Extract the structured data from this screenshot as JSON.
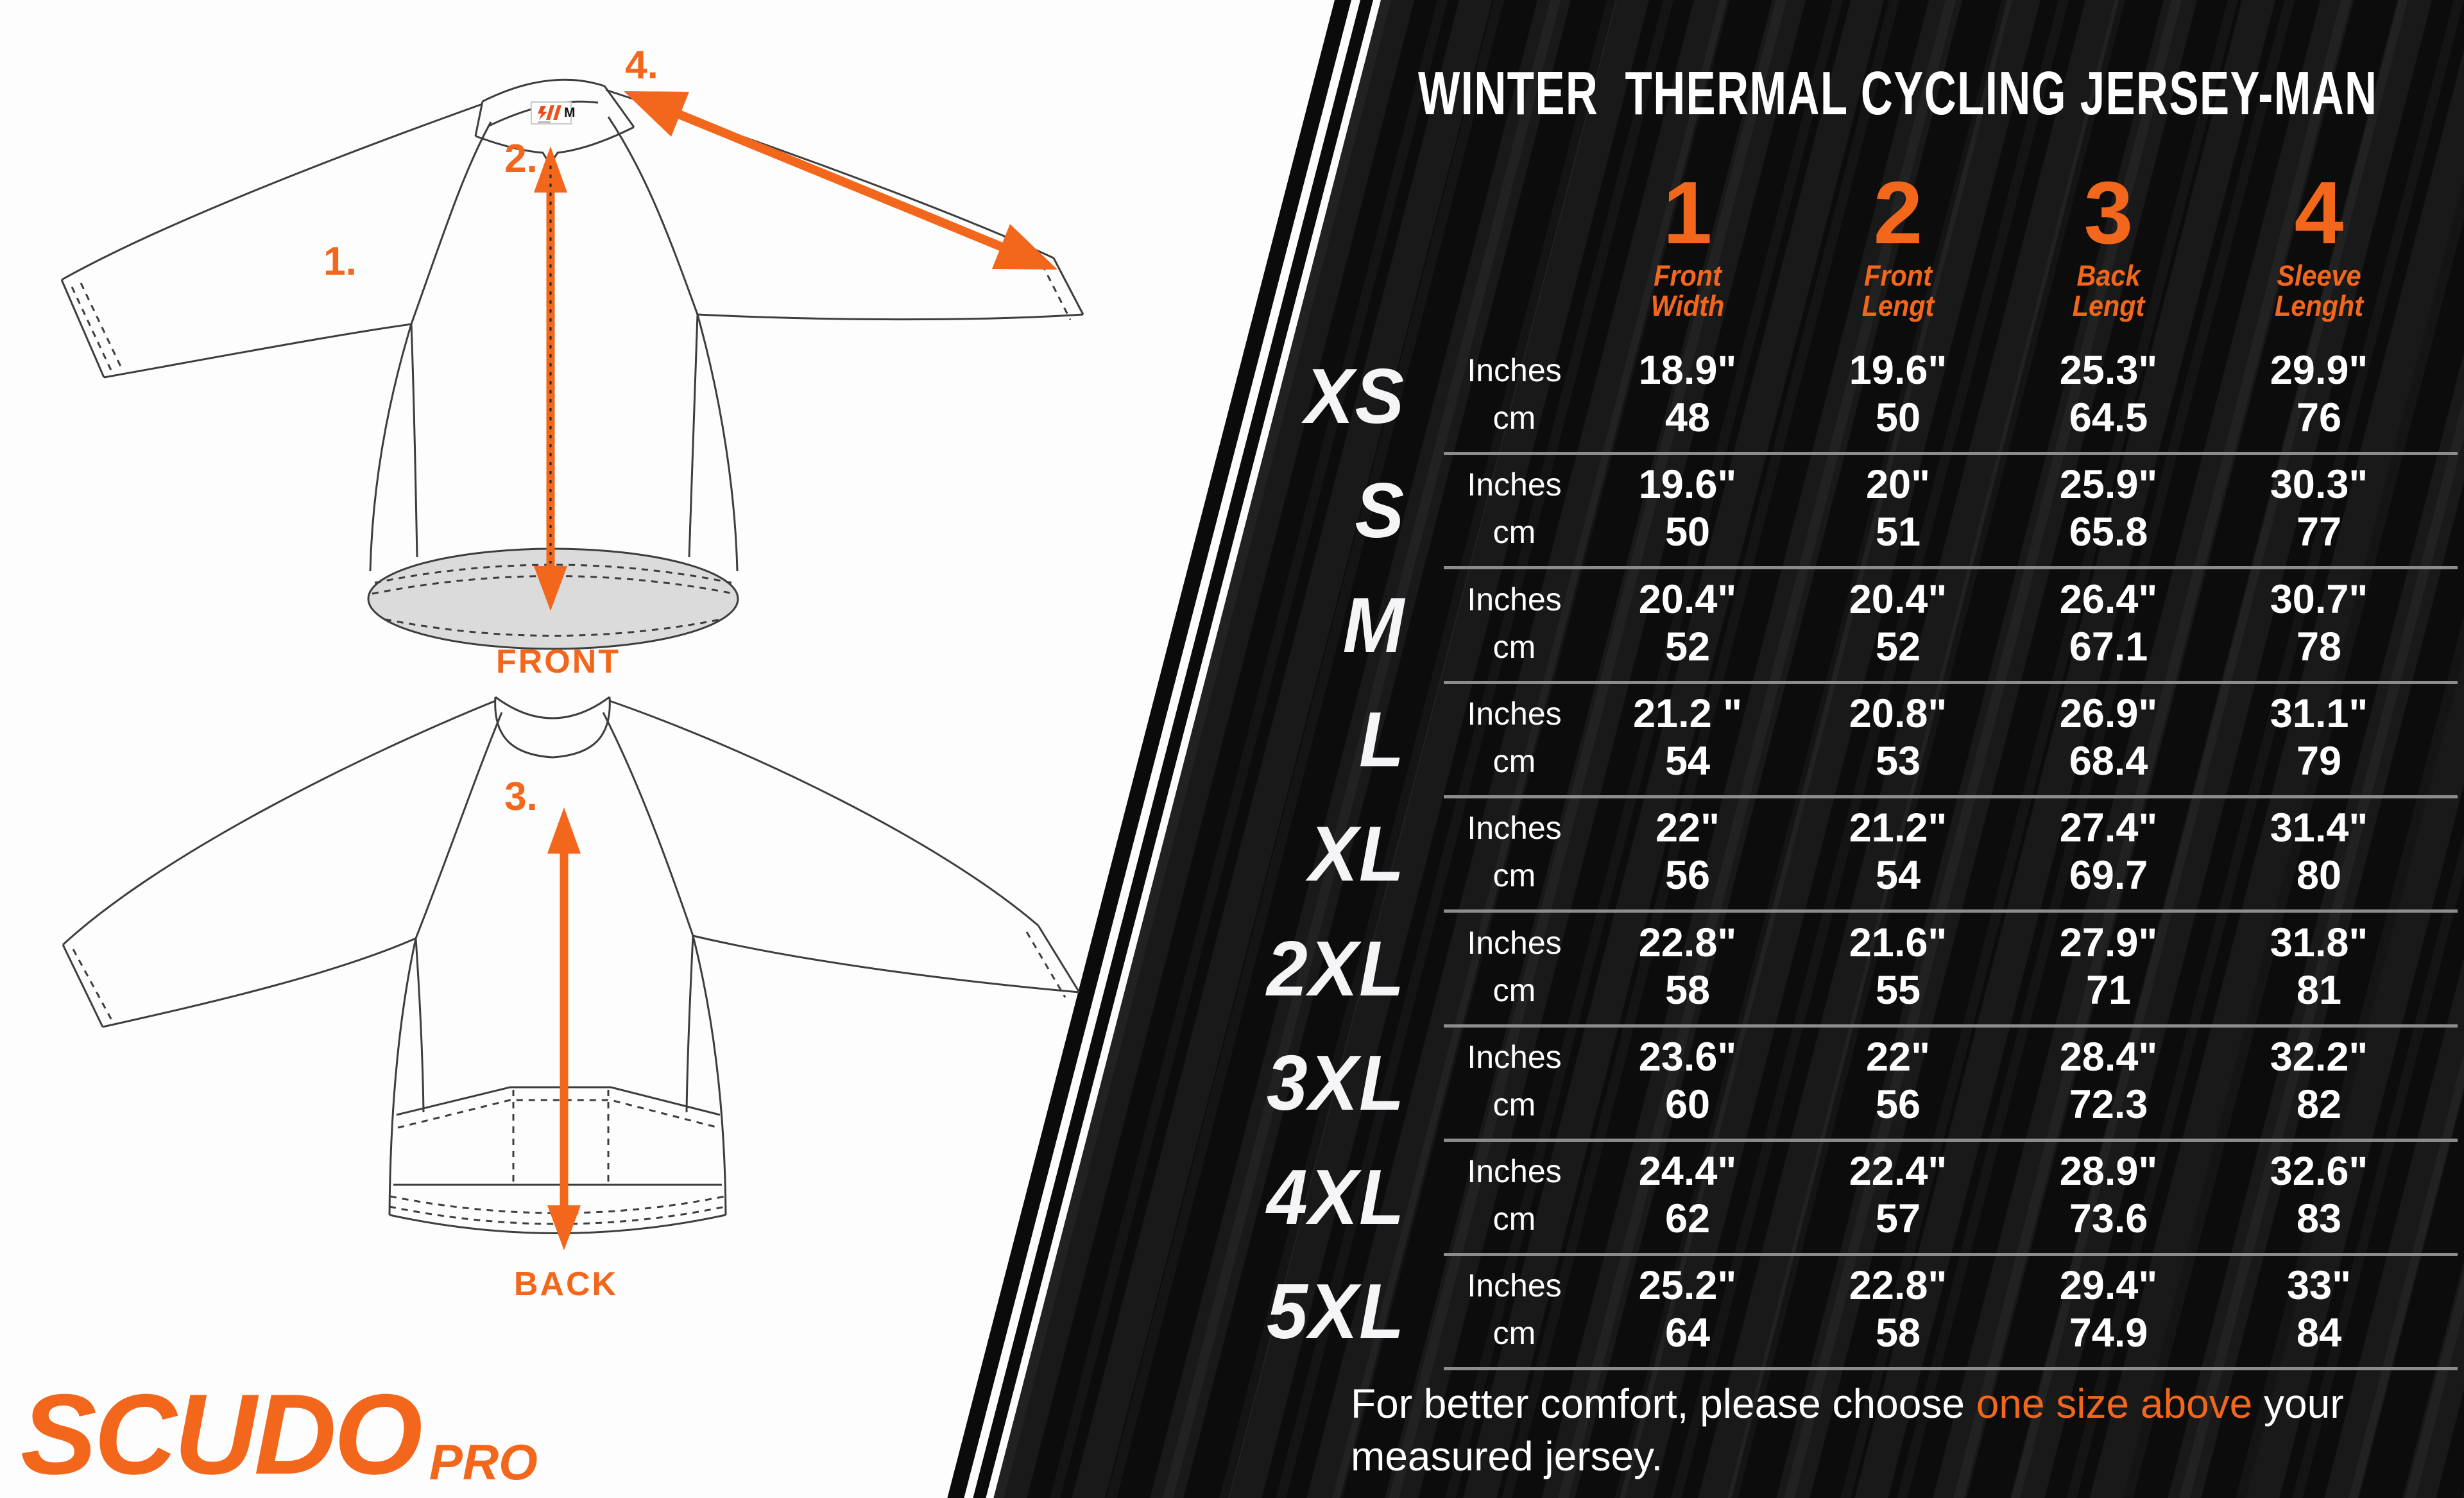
{
  "brand": {
    "logo_main": "SCUDO",
    "logo_sub": "PRO"
  },
  "diagram": {
    "front_label": "FRONT",
    "back_label": "BACK",
    "collar_tag_size": "M",
    "markers": {
      "front_width": "1.",
      "front_length": "2.",
      "back_length": "3.",
      "sleeve_length": "4."
    }
  },
  "table": {
    "title": "WINTER  THERMAL CYCLING JERSEY-MAN",
    "columns": [
      {
        "number": "1",
        "label1": "Front",
        "label2": "Width"
      },
      {
        "number": "2",
        "label1": "Front",
        "label2": "Lengt"
      },
      {
        "number": "3",
        "label1": "Back",
        "label2": "Lengt"
      },
      {
        "number": "4",
        "label1": "Sleeve",
        "label2": "Lenght"
      }
    ],
    "unit_labels": [
      "Inches",
      "cm"
    ],
    "rows": [
      {
        "size": "XS",
        "inches": [
          "18.9\"",
          "19.6\"",
          "25.3\"",
          "29.9\""
        ],
        "cm": [
          "48",
          "50",
          "64.5",
          "76"
        ]
      },
      {
        "size": "S",
        "inches": [
          "19.6\"",
          "20\"",
          "25.9\"",
          "30.3\""
        ],
        "cm": [
          "50",
          "51",
          "65.8",
          "77"
        ]
      },
      {
        "size": "M",
        "inches": [
          "20.4\"",
          "20.4\"",
          "26.4\"",
          "30.7\""
        ],
        "cm": [
          "52",
          "52",
          "67.1",
          "78"
        ]
      },
      {
        "size": "L",
        "inches": [
          "21.2 \"",
          "20.8\"",
          "26.9\"",
          "31.1\""
        ],
        "cm": [
          "54",
          "53",
          "68.4",
          "79"
        ]
      },
      {
        "size": "XL",
        "inches": [
          "22\"",
          "21.2\"",
          "27.4\"",
          "31.4\""
        ],
        "cm": [
          "56",
          "54",
          "69.7",
          "80"
        ]
      },
      {
        "size": "2XL",
        "inches": [
          "22.8\"",
          "21.6\"",
          "27.9\"",
          "31.8\""
        ],
        "cm": [
          "58",
          "55",
          "71",
          "81"
        ]
      },
      {
        "size": "3XL",
        "inches": [
          "23.6\"",
          "22\"",
          "28.4\"",
          "32.2\""
        ],
        "cm": [
          "60",
          "56",
          "72.3",
          "82"
        ]
      },
      {
        "size": "4XL",
        "inches": [
          "24.4\"",
          "22.4\"",
          "28.9\"",
          "32.6\""
        ],
        "cm": [
          "62",
          "57",
          "73.6",
          "83"
        ]
      },
      {
        "size": "5XL",
        "inches": [
          "25.2\"",
          "22.8\"",
          "29.4\"",
          "33\""
        ],
        "cm": [
          "64",
          "58",
          "74.9",
          "84"
        ]
      }
    ],
    "note": {
      "prefix": "For better comfort, please choose ",
      "highlight": "one size above",
      "suffix": " your measured jersey."
    }
  },
  "colors": {
    "accent_orange": "#f2671c",
    "panel_black": "#0c0c0c",
    "stripe_highlight": "#1a1a1a",
    "separator_gray": "#8c8c8c",
    "hem_gray": "#dbdbdb",
    "outline_gray": "#3d3d3d"
  }
}
